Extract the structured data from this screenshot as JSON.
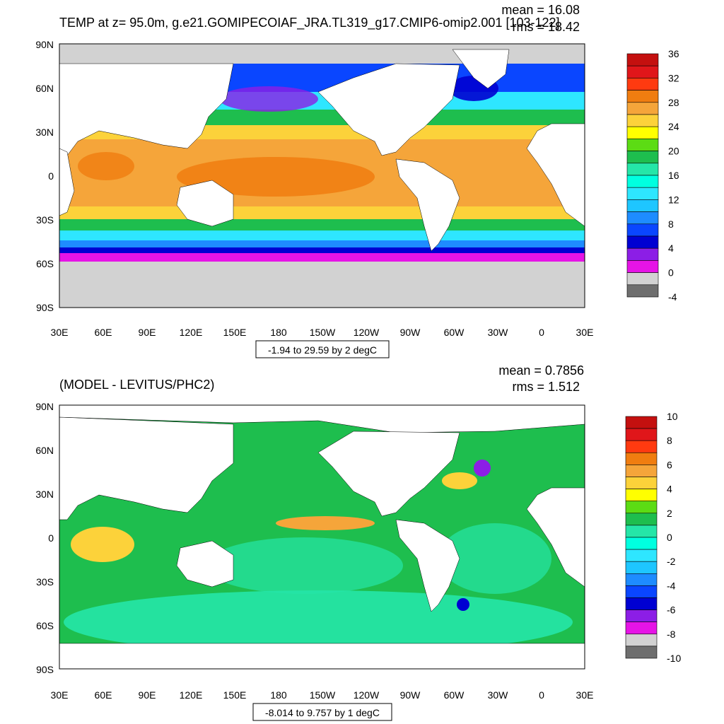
{
  "top_panel": {
    "title": "TEMP at z=  95.0m, g.e21.GOMIPECOIAF_JRA.TL319_g17.CMIP6-omip2.001 [103-122]",
    "stats": {
      "mean": "mean = 16.08",
      "rms": "rms = 18.42"
    },
    "contour_info": "-1.94 to 29.59 by 2 degC",
    "colorbar": {
      "labels": [
        "36",
        "32",
        "28",
        "24",
        "20",
        "16",
        "12",
        "8",
        "4",
        "0",
        "-4"
      ],
      "colors": [
        "#c4100f",
        "#e0161a",
        "#ff3a10",
        "#f07d10",
        "#f5a53a",
        "#fcd23a",
        "#ffff00",
        "#5cdc14",
        "#1ebe4e",
        "#25e6a8",
        "#00ffe0",
        "#2ee6ff",
        "#1ec6ff",
        "#1e8cff",
        "#0a46ff",
        "#0000d2",
        "#8c1ee6",
        "#e614e6",
        "#d2d2d2",
        "#6e6e6e"
      ]
    }
  },
  "bottom_panel": {
    "title": "(MODEL - LEVITUS/PHC2)",
    "stats": {
      "mean": "mean = 0.7856",
      "rms": "rms = 1.512"
    },
    "contour_info": "-8.014 to 9.757 by 1 degC",
    "colorbar": {
      "labels": [
        "10",
        "8",
        "6",
        "4",
        "2",
        "0",
        "-2",
        "-4",
        "-6",
        "-8",
        "-10"
      ],
      "colors": [
        "#c4100f",
        "#e0161a",
        "#ff3a10",
        "#f07d10",
        "#f5a53a",
        "#fcd23a",
        "#ffff00",
        "#5cdc14",
        "#1ebe4e",
        "#25e6a8",
        "#00ffe0",
        "#2ee6ff",
        "#1ec6ff",
        "#1e8cff",
        "#0a46ff",
        "#0000d2",
        "#8c1ee6",
        "#e614e6",
        "#d2d2d2",
        "#6e6e6e"
      ]
    }
  },
  "axes": {
    "lat_labels": [
      "90N",
      "60N",
      "30N",
      "0",
      "30S",
      "60S",
      "90S"
    ],
    "lon_labels": [
      "30E",
      "60E",
      "90E",
      "120E",
      "150E",
      "180",
      "150W",
      "120W",
      "90W",
      "60W",
      "30W",
      "0",
      "30E"
    ]
  },
  "colors": {
    "land": "#ffffff",
    "sea_ice": "#d2d2d2",
    "frame": "#000000"
  }
}
